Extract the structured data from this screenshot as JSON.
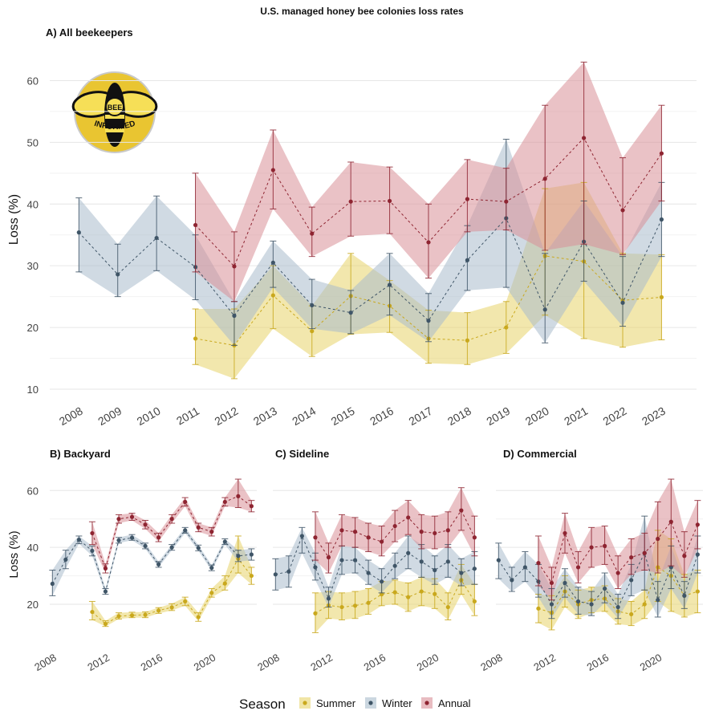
{
  "title": "U.S. managed honey bee colonies loss rates",
  "legend": {
    "title": "Season",
    "items": [
      {
        "label": "Summer",
        "color": "#c9a81d",
        "fill": "#e8d36a"
      },
      {
        "label": "Winter",
        "color": "#3f5567",
        "fill": "#a9bccc"
      },
      {
        "label": "Annual",
        "color": "#8e2431",
        "fill": "#d98f98"
      }
    ]
  },
  "logo": {
    "text_top": "BEE",
    "text_bottom": "INFORMED"
  },
  "chart_data": [
    {
      "type": "line",
      "title": "A) All beekeepers",
      "ylabel": "Loss (%)",
      "xlabel": "",
      "ylim": [
        10,
        65
      ],
      "yticks": [
        10,
        20,
        30,
        40,
        50,
        60
      ],
      "x": [
        2008,
        2009,
        2010,
        2011,
        2012,
        2013,
        2014,
        2015,
        2016,
        2017,
        2018,
        2019,
        2020,
        2021,
        2022,
        2023
      ],
      "xticks": [
        2008,
        2009,
        2010,
        2011,
        2012,
        2013,
        2014,
        2015,
        2016,
        2017,
        2018,
        2019,
        2020,
        2021,
        2022,
        2023
      ],
      "grid": true,
      "series": [
        {
          "name": "Summer",
          "values": [
            null,
            null,
            null,
            18.2,
            17.1,
            25.2,
            19.4,
            25.1,
            23.5,
            18.2,
            17.9,
            20.0,
            31.6,
            30.7,
            24.4,
            24.9
          ],
          "lower": [
            null,
            null,
            null,
            14.0,
            11.7,
            19.8,
            15.3,
            18.9,
            19.2,
            14.2,
            14.0,
            15.8,
            22.0,
            18.2,
            16.8,
            18.0
          ],
          "upper": [
            null,
            null,
            null,
            23.0,
            23.0,
            30.0,
            23.5,
            32.0,
            27.6,
            22.8,
            22.4,
            24.2,
            42.5,
            43.5,
            32.0,
            31.8
          ]
        },
        {
          "name": "Winter",
          "values": [
            35.4,
            28.6,
            34.5,
            29.8,
            21.9,
            30.5,
            23.6,
            22.4,
            26.9,
            21.1,
            30.9,
            37.7,
            22.9,
            33.9,
            24.0,
            37.5
          ],
          "lower": [
            29.0,
            25.0,
            29.2,
            24.5,
            17.1,
            26.5,
            19.8,
            19.0,
            22.0,
            17.7,
            26.0,
            26.5,
            17.5,
            27.5,
            20.2,
            31.5
          ],
          "upper": [
            41.0,
            33.5,
            41.3,
            35.0,
            24.2,
            34.0,
            27.8,
            26.0,
            32.0,
            25.5,
            36.5,
            50.5,
            32.0,
            40.5,
            31.5,
            43.5
          ]
        },
        {
          "name": "Annual",
          "values": [
            null,
            null,
            null,
            36.6,
            29.9,
            45.5,
            35.2,
            40.4,
            40.5,
            33.8,
            40.8,
            40.4,
            44.1,
            50.7,
            39.0,
            48.2
          ],
          "lower": [
            null,
            null,
            null,
            29.0,
            24.2,
            39.2,
            31.5,
            34.8,
            35.2,
            28.0,
            35.5,
            35.8,
            32.5,
            33.5,
            31.8,
            40.5
          ],
          "upper": [
            null,
            null,
            null,
            45.0,
            35.5,
            52.0,
            39.5,
            46.8,
            46.0,
            40.0,
            47.2,
            45.8,
            56.0,
            63.0,
            47.5,
            56.0
          ]
        }
      ]
    },
    {
      "type": "line",
      "title": "B) Backyard",
      "ylabel": "Loss (%)",
      "ylim": [
        9,
        66
      ],
      "yticks": [
        20,
        40,
        60
      ],
      "x": [
        2008,
        2009,
        2010,
        2011,
        2012,
        2013,
        2014,
        2015,
        2016,
        2017,
        2018,
        2019,
        2020,
        2021,
        2022,
        2023
      ],
      "xticks": [
        2008,
        2012,
        2016,
        2020
      ],
      "grid": true,
      "series": [
        {
          "name": "Summer",
          "values": [
            null,
            null,
            null,
            17.3,
            13.1,
            15.8,
            16.1,
            16.3,
            17.8,
            18.9,
            21.0,
            15.5,
            24.0,
            27.3,
            36.0,
            30.0
          ],
          "lower": [
            null,
            null,
            null,
            14.5,
            12.2,
            14.8,
            15.3,
            15.3,
            16.8,
            17.8,
            19.5,
            14.0,
            22.5,
            25.0,
            31.0,
            27.0
          ],
          "upper": [
            null,
            null,
            null,
            21.0,
            14.2,
            17.0,
            17.2,
            17.3,
            18.8,
            20.2,
            22.5,
            17.0,
            25.5,
            30.0,
            44.0,
            33.0
          ]
        },
        {
          "name": "Winter",
          "values": [
            27.2,
            35.7,
            42.7,
            38.8,
            24.5,
            42.5,
            43.4,
            40.5,
            34.0,
            40.0,
            46.0,
            39.8,
            32.8,
            42.0,
            37.0,
            37.5
          ],
          "lower": [
            23.0,
            32.5,
            41.3,
            37.0,
            23.5,
            41.5,
            42.5,
            39.5,
            33.0,
            39.0,
            45.0,
            38.8,
            31.8,
            41.0,
            35.0,
            35.5
          ],
          "upper": [
            32.0,
            39.0,
            44.0,
            40.5,
            25.5,
            43.5,
            44.5,
            41.5,
            35.0,
            41.0,
            47.0,
            40.8,
            33.8,
            43.0,
            39.0,
            39.5
          ]
        },
        {
          "name": "Annual",
          "values": [
            null,
            null,
            null,
            45.0,
            32.6,
            50.0,
            50.7,
            48.0,
            43.5,
            50.0,
            56.0,
            47.0,
            45.5,
            56.0,
            58.0,
            54.5
          ],
          "lower": [
            null,
            null,
            null,
            41.0,
            31.0,
            48.5,
            49.5,
            46.5,
            42.0,
            48.5,
            54.5,
            45.5,
            44.0,
            54.5,
            54.0,
            52.5
          ],
          "upper": [
            null,
            null,
            null,
            49.0,
            34.2,
            51.5,
            52.0,
            49.5,
            45.0,
            51.5,
            57.5,
            48.5,
            47.0,
            57.5,
            64.0,
            56.5
          ]
        }
      ]
    },
    {
      "type": "line",
      "title": "C) Sideline",
      "ylim": [
        9,
        66
      ],
      "yticks": [
        20,
        40,
        60
      ],
      "x": [
        2008,
        2009,
        2010,
        2011,
        2012,
        2013,
        2014,
        2015,
        2016,
        2017,
        2018,
        2019,
        2020,
        2021,
        2022,
        2023
      ],
      "xticks": [
        2008,
        2012,
        2016,
        2020
      ],
      "grid": true,
      "series": [
        {
          "name": "Summer",
          "values": [
            null,
            null,
            null,
            16.8,
            19.6,
            19.0,
            19.5,
            20.5,
            23.5,
            24.2,
            22.5,
            24.5,
            23.6,
            19.0,
            28.5,
            21.0
          ],
          "lower": [
            null,
            null,
            null,
            10.0,
            15.0,
            14.5,
            15.0,
            16.5,
            19.5,
            20.0,
            17.5,
            19.5,
            18.5,
            14.5,
            23.5,
            16.0
          ],
          "upper": [
            null,
            null,
            null,
            24.0,
            24.5,
            24.0,
            24.5,
            25.5,
            28.0,
            28.5,
            27.5,
            29.5,
            29.0,
            24.0,
            34.0,
            27.0
          ]
        },
        {
          "name": "Winter",
          "values": [
            30.5,
            31.5,
            44.0,
            33.0,
            22.0,
            35.5,
            35.5,
            31.0,
            28.0,
            33.5,
            38.0,
            35.0,
            32.0,
            35.0,
            31.0,
            32.5
          ],
          "lower": [
            25.0,
            26.0,
            38.0,
            28.5,
            19.0,
            30.5,
            31.0,
            27.0,
            24.0,
            29.0,
            32.5,
            29.5,
            27.0,
            29.5,
            26.5,
            27.0
          ],
          "upper": [
            36.0,
            37.0,
            47.0,
            38.0,
            26.0,
            40.5,
            40.0,
            35.5,
            32.5,
            38.0,
            44.0,
            41.0,
            37.0,
            41.0,
            36.0,
            38.5
          ]
        },
        {
          "name": "Annual",
          "values": [
            null,
            null,
            null,
            43.5,
            36.5,
            46.0,
            45.5,
            43.5,
            42.0,
            47.5,
            50.5,
            45.5,
            45.0,
            46.0,
            53.0,
            43.5
          ],
          "lower": [
            null,
            null,
            null,
            35.5,
            31.0,
            40.5,
            40.0,
            38.5,
            37.0,
            42.0,
            44.5,
            39.5,
            39.5,
            40.0,
            46.0,
            37.0
          ],
          "upper": [
            null,
            null,
            null,
            52.5,
            41.5,
            51.5,
            50.5,
            48.5,
            47.5,
            53.0,
            56.5,
            51.5,
            51.0,
            52.5,
            61.0,
            51.0
          ]
        }
      ]
    },
    {
      "type": "line",
      "title": "D) Commercial",
      "ylim": [
        9,
        66
      ],
      "yticks": [
        20,
        40,
        60
      ],
      "x": [
        2008,
        2009,
        2010,
        2011,
        2012,
        2013,
        2014,
        2015,
        2016,
        2017,
        2018,
        2019,
        2020,
        2021,
        2022,
        2023
      ],
      "xticks": [
        2008,
        2012,
        2016,
        2020
      ],
      "grid": true,
      "series": [
        {
          "name": "Summer",
          "values": [
            null,
            null,
            null,
            18.5,
            17.0,
            24.5,
            20.0,
            21.5,
            22.0,
            17.5,
            16.5,
            20.0,
            33.0,
            30.0,
            23.0,
            24.5
          ],
          "lower": [
            null,
            null,
            null,
            13.5,
            11.0,
            19.0,
            15.0,
            17.0,
            17.5,
            13.0,
            12.5,
            15.0,
            21.0,
            17.5,
            15.5,
            17.0
          ],
          "upper": [
            null,
            null,
            null,
            23.5,
            23.0,
            30.0,
            25.0,
            26.0,
            26.5,
            22.0,
            21.0,
            25.0,
            46.0,
            43.0,
            30.5,
            32.0
          ]
        },
        {
          "name": "Winter",
          "values": [
            35.5,
            28.5,
            33.0,
            28.0,
            20.0,
            27.5,
            21.0,
            20.0,
            25.5,
            19.0,
            28.5,
            38.0,
            21.5,
            33.0,
            23.0,
            37.5
          ],
          "lower": [
            29.0,
            24.5,
            28.0,
            22.5,
            15.0,
            22.5,
            16.5,
            16.0,
            20.5,
            15.0,
            23.0,
            25.0,
            15.5,
            25.5,
            18.5,
            31.0
          ],
          "upper": [
            41.5,
            33.0,
            38.5,
            34.0,
            25.5,
            32.5,
            26.0,
            24.5,
            31.0,
            23.5,
            34.0,
            51.0,
            28.0,
            40.5,
            28.0,
            44.0
          ]
        },
        {
          "name": "Annual",
          "values": [
            null,
            null,
            null,
            34.5,
            27.5,
            45.0,
            33.0,
            40.0,
            40.5,
            31.0,
            36.5,
            38.0,
            43.0,
            49.0,
            37.0,
            48.0
          ],
          "lower": [
            null,
            null,
            null,
            26.5,
            21.5,
            38.0,
            27.5,
            33.0,
            34.0,
            25.5,
            30.5,
            32.0,
            31.0,
            33.5,
            29.5,
            39.5
          ],
          "upper": [
            null,
            null,
            null,
            44.0,
            33.0,
            52.0,
            38.5,
            47.0,
            47.5,
            37.0,
            43.0,
            45.0,
            56.0,
            64.0,
            45.5,
            56.5
          ]
        }
      ]
    }
  ]
}
